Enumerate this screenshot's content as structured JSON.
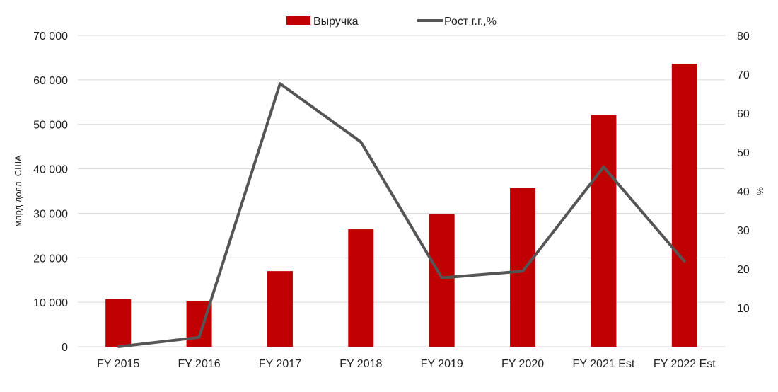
{
  "chart_data": {
    "type": "bar",
    "categories": [
      "FY 2015",
      "FY 2016",
      "FY 2017",
      "FY 2018",
      "FY 2019",
      "FY 2020",
      "FY 2021 Est",
      "FY 2022 Est"
    ],
    "series": [
      {
        "name": "Выручка",
        "type": "bar",
        "axis": "left",
        "color": "#c00000",
        "values": [
          10700,
          10300,
          17000,
          26400,
          29800,
          35700,
          52100,
          63600
        ]
      },
      {
        "name": "Рост г.г.,%",
        "type": "line",
        "axis": "right",
        "color": "#555555",
        "values": [
          0,
          2.4,
          67.6,
          52.6,
          17.7,
          19.4,
          46.2,
          21.9
        ]
      }
    ],
    "ylabel": "млрд долл. США",
    "ylabel_right": "%",
    "ylim": [
      0,
      70000
    ],
    "ylim_right": [
      0,
      80
    ],
    "yticks": [
      "0",
      "10 000",
      "20 000",
      "30 000",
      "40 000",
      "50 000",
      "60 000",
      "70 000"
    ],
    "yticks_right": [
      "10",
      "20",
      "30",
      "40",
      "50",
      "60",
      "70",
      "80"
    ],
    "legend_position": "top",
    "grid": true
  }
}
